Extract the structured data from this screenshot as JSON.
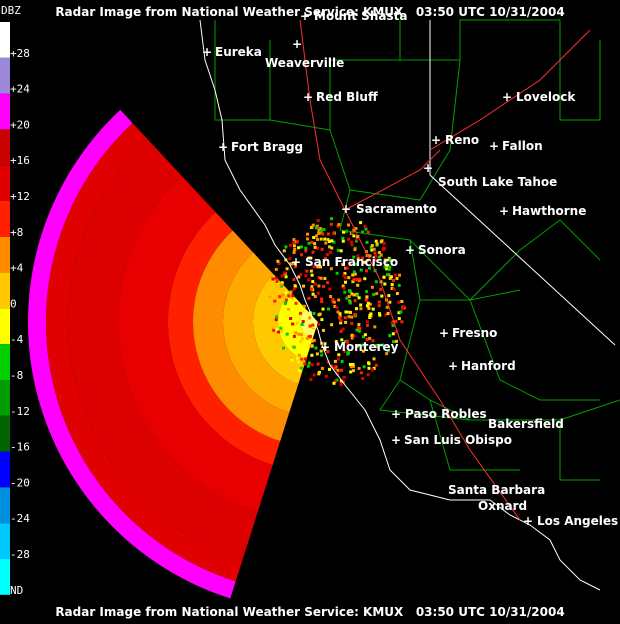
{
  "header": {
    "title": "Radar Image from National Weather Service: KMUX   03:50 UTC 10/31/2004"
  },
  "footer": {
    "title": "Radar Image from National Weather Service: KMUX   03:50 UTC 10/31/2004"
  },
  "legend": {
    "title": "DBZ",
    "labels": [
      "+28",
      "+24",
      "+20",
      "+16",
      "+12",
      "+8",
      "+4",
      "0",
      "-4",
      "-8",
      "-12",
      "-16",
      "-20",
      "-24",
      "-28",
      "ND"
    ],
    "colors": [
      "#ffffff",
      "#9c88d8",
      "#ff00ff",
      "#c80000",
      "#e00000",
      "#ff2000",
      "#ff8c00",
      "#ffc800",
      "#ffff00",
      "#00d000",
      "#009c00",
      "#006400",
      "#0000ff",
      "#0090e0",
      "#00c8ff",
      "#00ffff"
    ]
  },
  "cities": [
    "Mount Shasta",
    "Eureka",
    "Weaverville",
    "Red Bluff",
    "Lovelock",
    "Fort Bragg",
    "Reno",
    "Fallon",
    "South Lake Tahoe",
    "Sacramento",
    "Hawthorne",
    "Sonora",
    "San Francisco",
    "Fresno",
    "Monterey",
    "Hanford",
    "Paso Robles",
    "Bakersfield",
    "San Luis Obispo",
    "Santa Barbara",
    "Oxnard",
    "Los Angeles"
  ]
}
